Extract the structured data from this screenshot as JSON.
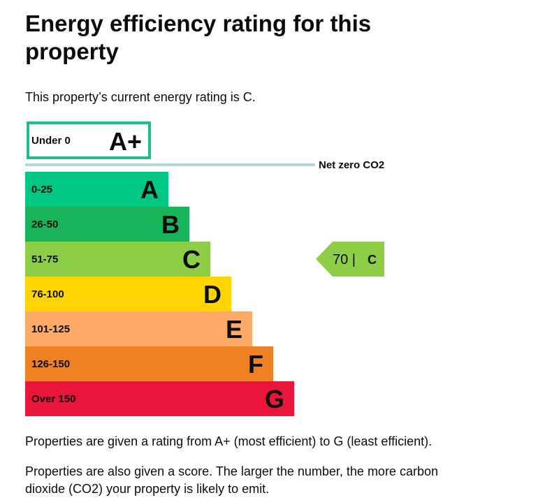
{
  "page": {
    "title": "Energy efficiency rating for this property",
    "intro": "This property’s current energy rating is C.",
    "footnote_1": "Properties are given a rating from A+ (most efficient) to G (least efficient).",
    "footnote_2": "Properties are also given a score. The larger the number, the more carbon dioxide (CO2) your property is likely to emit."
  },
  "chart_data": {
    "type": "bar",
    "title": "Energy efficiency rating",
    "net_zero_label": "Net zero CO2",
    "bands": [
      {
        "letter": "A+",
        "range": "Under 0",
        "color": "#ffffff",
        "border": "#1ebf8c"
      },
      {
        "letter": "A",
        "range": "0-25",
        "color": "#00c781"
      },
      {
        "letter": "B",
        "range": "26-50",
        "color": "#19b459"
      },
      {
        "letter": "C",
        "range": "51-75",
        "color": "#8dce46"
      },
      {
        "letter": "D",
        "range": "76-100",
        "color": "#ffd500"
      },
      {
        "letter": "E",
        "range": "101-125",
        "color": "#fcaa65"
      },
      {
        "letter": "F",
        "range": "126-150",
        "color": "#ef8023"
      },
      {
        "letter": "G",
        "range": "Over 150",
        "color": "#e9153b"
      }
    ],
    "current": {
      "score": 70,
      "rating": "C",
      "score_text": "70 |",
      "color": "#8dce46"
    },
    "net_zero_line_color": "#b5d6e3"
  }
}
